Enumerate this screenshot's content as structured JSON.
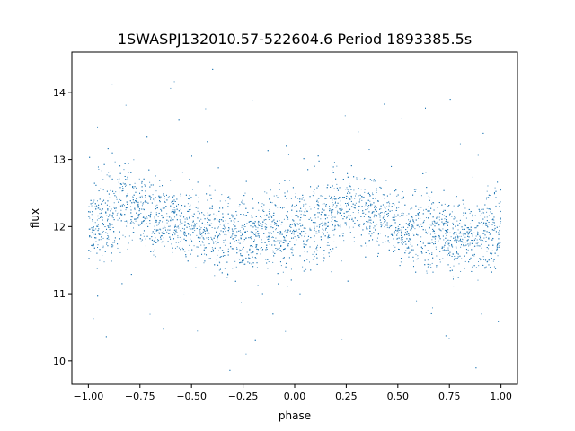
{
  "chart_data": {
    "type": "scatter",
    "title": "1SWASPJ132010.57-522604.6 Period 1893385.5s",
    "xlabel": "phase",
    "ylabel": "flux",
    "xlim": [
      -1.08,
      1.08
    ],
    "ylim": [
      9.65,
      14.6
    ],
    "xticks": [
      -1.0,
      -0.75,
      -0.5,
      -0.25,
      0.0,
      0.25,
      0.5,
      0.75,
      1.0
    ],
    "xtick_labels": [
      "−1.00",
      "−0.75",
      "−0.50",
      "−0.25",
      "0.00",
      "0.25",
      "0.50",
      "0.75",
      "1.00"
    ],
    "yticks": [
      10,
      11,
      12,
      13,
      14
    ],
    "ytick_labels": [
      "10",
      "11",
      "12",
      "13",
      "14"
    ],
    "grid": false,
    "legend": "none",
    "point_color": "#1f77b4",
    "series": [
      {
        "x": [
          -1.0,
          -0.98,
          -0.96,
          -0.94,
          -0.92,
          -0.9,
          -0.88,
          -0.86,
          -0.84,
          -0.82,
          -0.8,
          -0.78,
          -0.76,
          -0.74,
          -0.72,
          -0.7,
          -0.68,
          -0.66,
          -0.64,
          -0.62,
          -0.6,
          -0.58,
          -0.56,
          -0.54,
          -0.52,
          -0.5,
          -0.48,
          -0.46,
          -0.44,
          -0.42,
          -0.4,
          -0.38,
          -0.36,
          -0.34,
          -0.32,
          -0.3,
          -0.28,
          -0.26,
          -0.24,
          -0.22,
          -0.2,
          -0.18,
          -0.16,
          -0.14,
          -0.12,
          -0.1,
          -0.08,
          -0.06,
          -0.04,
          -0.02,
          0.0,
          0.02,
          0.04,
          0.06,
          0.08,
          0.1,
          0.12,
          0.14,
          0.16,
          0.18,
          0.2,
          0.22,
          0.24,
          0.26,
          0.28,
          0.3,
          0.32,
          0.34,
          0.36,
          0.38,
          0.4,
          0.42,
          0.44,
          0.46,
          0.48,
          0.5,
          0.52,
          0.54,
          0.56,
          0.58,
          0.6,
          0.62,
          0.64,
          0.66,
          0.68,
          0.7,
          0.72,
          0.74,
          0.76,
          0.78,
          0.8,
          0.82,
          0.84,
          0.86,
          0.88,
          0.9,
          0.92,
          0.94,
          0.96,
          0.98,
          1.0
        ],
        "y": [
          12.0,
          12.05,
          12.1,
          12.15,
          12.2,
          12.2,
          12.2,
          12.25,
          12.3,
          12.35,
          12.3,
          12.3,
          12.3,
          12.25,
          12.25,
          12.25,
          12.2,
          12.2,
          12.15,
          12.15,
          12.1,
          12.1,
          12.05,
          12.05,
          12.0,
          12.0,
          12.0,
          11.95,
          11.95,
          11.95,
          11.9,
          11.9,
          11.9,
          11.9,
          11.9,
          11.85,
          11.85,
          11.85,
          11.9,
          11.9,
          11.85,
          11.85,
          11.9,
          11.9,
          11.95,
          11.95,
          11.95,
          11.95,
          11.9,
          11.9,
          12.0,
          12.0,
          12.05,
          12.05,
          12.0,
          12.05,
          12.1,
          12.1,
          12.15,
          12.2,
          12.25,
          12.3,
          12.3,
          12.3,
          12.3,
          12.25,
          12.25,
          12.25,
          12.2,
          12.2,
          12.15,
          12.15,
          12.1,
          12.1,
          12.05,
          12.05,
          12.0,
          12.0,
          12.0,
          11.95,
          11.95,
          11.95,
          11.9,
          11.9,
          11.9,
          11.9,
          11.9,
          11.85,
          11.85,
          11.85,
          11.9,
          11.9,
          11.85,
          11.85,
          11.9,
          11.9,
          11.95,
          11.95,
          11.95,
          11.95,
          12.0
        ],
        "scatter_band": [
          0.55,
          0.6,
          0.7,
          0.8,
          0.9,
          0.85,
          0.7,
          0.65,
          0.7,
          0.8,
          0.75,
          0.65,
          0.6,
          0.65,
          0.7,
          0.75,
          0.7,
          0.6,
          0.55,
          0.6,
          0.65,
          0.6,
          0.55,
          0.55,
          0.6,
          0.65,
          0.6,
          0.55,
          0.55,
          0.6,
          0.7,
          0.75,
          0.8,
          0.7,
          0.6,
          0.55,
          0.55,
          0.6,
          0.65,
          0.7,
          0.6,
          0.55,
          0.55,
          0.6,
          0.65,
          0.65,
          0.7,
          0.8,
          0.85,
          0.75,
          0.6,
          0.55,
          0.7,
          0.85,
          0.9,
          0.85,
          0.65,
          0.6,
          0.7,
          0.8,
          0.75,
          0.65,
          0.6,
          0.65,
          0.7,
          0.75,
          0.7,
          0.6,
          0.55,
          0.6,
          0.65,
          0.6,
          0.55,
          0.55,
          0.6,
          0.65,
          0.6,
          0.55,
          0.55,
          0.6,
          0.7,
          0.75,
          0.8,
          0.7,
          0.6,
          0.55,
          0.55,
          0.6,
          0.65,
          0.7,
          0.6,
          0.55,
          0.55,
          0.6,
          0.65,
          0.65,
          0.7,
          0.8,
          0.85,
          0.75,
          0.6
        ]
      }
    ]
  }
}
